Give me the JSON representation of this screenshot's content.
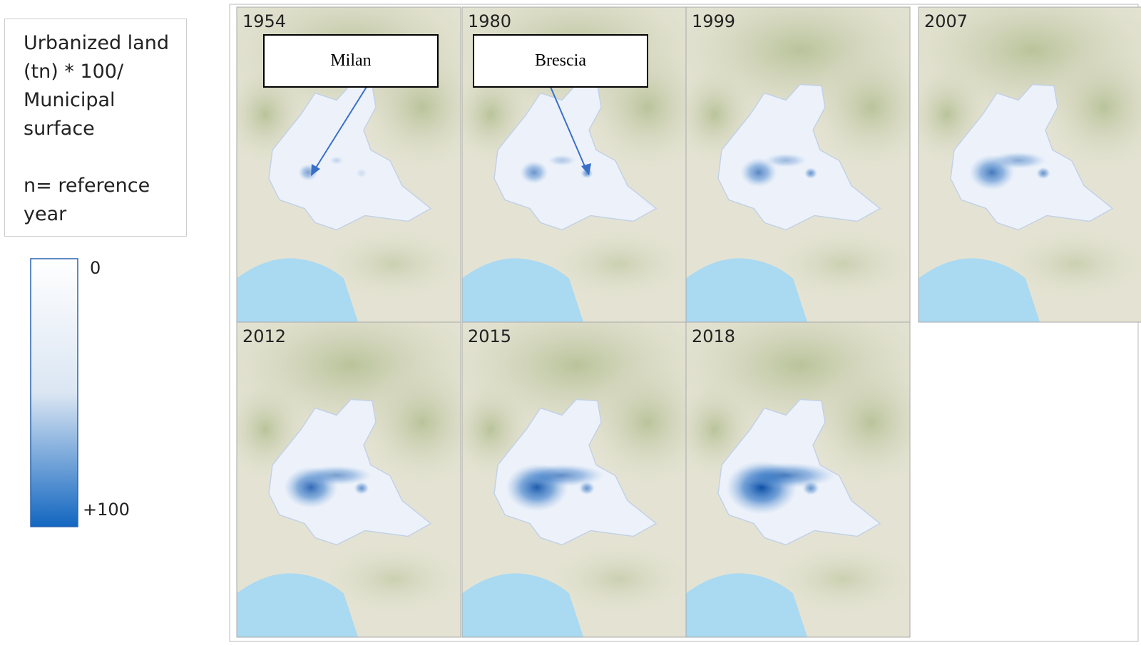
{
  "legend": {
    "title": "Urbanized land (tn) * 100/ Municipal surface",
    "note": "n= reference year",
    "scale_top_label": "0",
    "scale_bottom_label": "+100"
  },
  "panels": [
    {
      "label": "1954"
    },
    {
      "label": "1980"
    },
    {
      "label": "1999"
    },
    {
      "label": "2007"
    },
    {
      "label": "2012"
    },
    {
      "label": "2015"
    },
    {
      "label": "2018"
    }
  ],
  "callouts": [
    {
      "label": "Milan"
    },
    {
      "label": "Brescia"
    }
  ]
}
